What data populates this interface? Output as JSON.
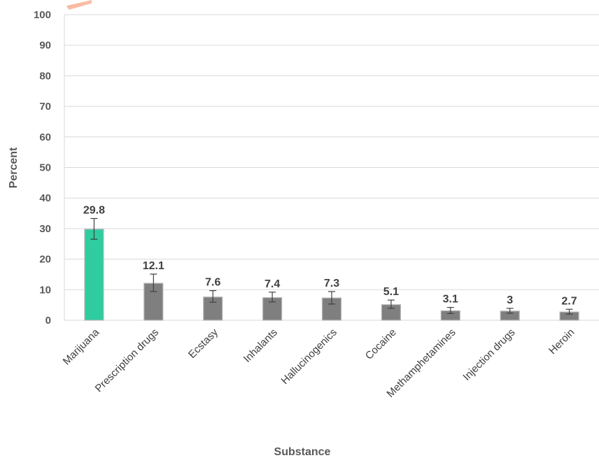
{
  "chart_data": {
    "type": "bar",
    "categories": [
      "Marijuana",
      "Prescription drugs",
      "Ecstasy",
      "Inhalants",
      "Hallucinogenics",
      "Cocaine",
      "Methamphetamines",
      "Injection drugs",
      "Heroin"
    ],
    "values": [
      29.8,
      12.1,
      7.6,
      7.4,
      7.3,
      5.1,
      3.1,
      3,
      2.7
    ],
    "data_labels": [
      "29.8",
      "12.1",
      "7.6",
      "7.4",
      "7.3",
      "5.1",
      "3.1",
      "3",
      "2.7"
    ],
    "error_low": [
      26.5,
      9.4,
      5.9,
      6.0,
      5.3,
      3.9,
      2.2,
      2.3,
      2.0
    ],
    "error_high": [
      33.3,
      15.1,
      9.7,
      9.2,
      9.4,
      6.6,
      4.2,
      3.9,
      3.6
    ],
    "colors": [
      "#2ecc9e",
      "#7f7f7f",
      "#7f7f7f",
      "#7f7f7f",
      "#7f7f7f",
      "#7f7f7f",
      "#7f7f7f",
      "#7f7f7f",
      "#7f7f7f"
    ],
    "bar_border": "#b8b8b8",
    "xlabel": "Substance",
    "ylabel": "Percent",
    "ylim": [
      0,
      100
    ],
    "yticks": [
      0,
      10,
      20,
      30,
      40,
      50,
      60,
      70,
      80,
      90,
      100
    ],
    "grid": true
  }
}
